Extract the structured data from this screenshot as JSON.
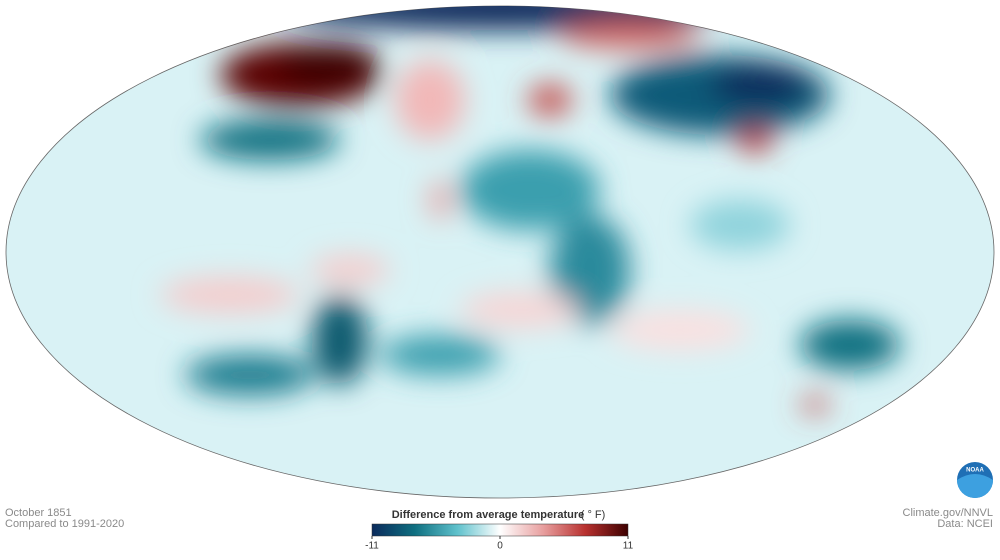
{
  "caption": {
    "date": "October 1851",
    "baseline": "Compared to 1991-2020"
  },
  "credits": {
    "source": "Climate.gov/NNVL",
    "data": "Data: NCEI",
    "logo": "NOAA"
  },
  "legend": {
    "title": "Difference from average temperature",
    "unit": "( ° F)",
    "lim": [
      -11,
      11
    ],
    "ticks": [
      -11,
      0,
      11
    ],
    "colors": [
      "#0b2a5c",
      "#0e6f80",
      "#5fc1cc",
      "#ffffff",
      "#e8a0a0",
      "#b8312f",
      "#3d0000"
    ]
  }
}
